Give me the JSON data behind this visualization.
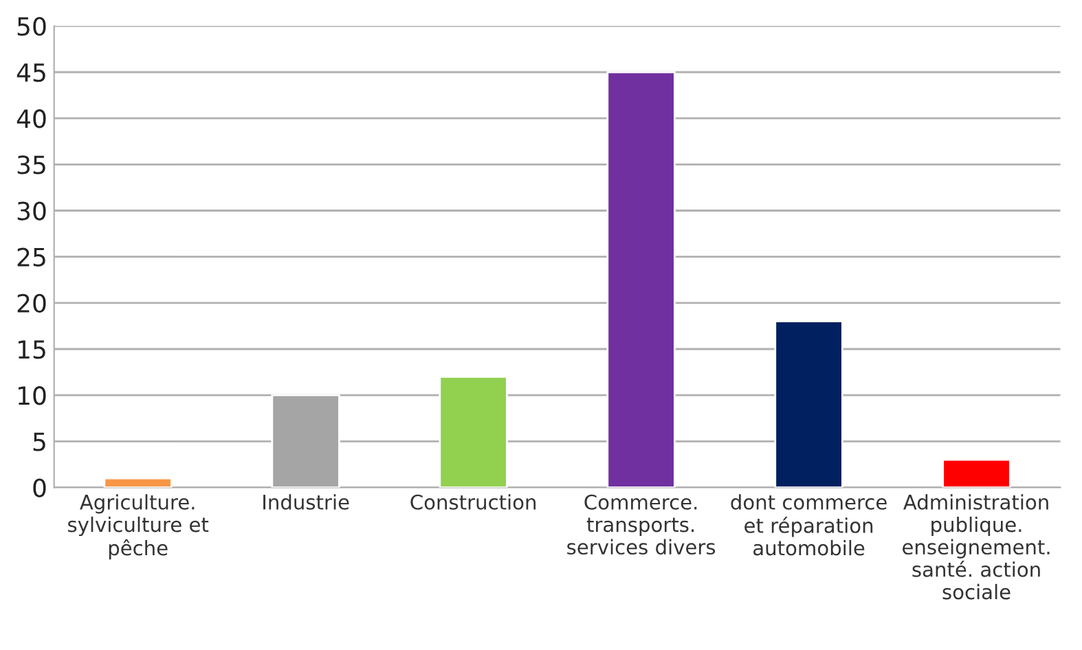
{
  "chart_data": {
    "type": "bar",
    "categories": [
      "Agriculture.\nsylviculture et\npêche",
      "Industrie",
      "Construction",
      "Commerce.\ntransports.\nservices divers",
      "dont commerce\net réparation\nautomobile",
      "Administration\npublique.\nenseignement.\nsanté. action\nsociale"
    ],
    "values": [
      1,
      10,
      12,
      45,
      18,
      3
    ],
    "colors": [
      "#f79646",
      "#a5a5a5",
      "#92d050",
      "#7030a0",
      "#002060",
      "#ff0000"
    ],
    "ylim": [
      0,
      50
    ],
    "yticks": [
      0,
      5,
      10,
      15,
      20,
      25,
      30,
      35,
      40,
      45,
      50
    ],
    "grid": "y"
  }
}
